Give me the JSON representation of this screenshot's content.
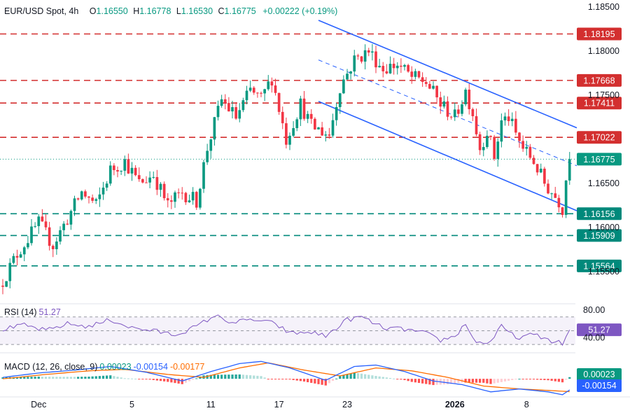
{
  "header": {
    "symbol": "EUR/USD Spot, 4h",
    "o_label": "O",
    "o_value": "1.16550",
    "h_label": "H",
    "h_value": "1.16778",
    "l_label": "L",
    "l_value": "1.16530",
    "c_label": "C",
    "c_value": "1.16775",
    "change": "+0.00222 (+0.19%)"
  },
  "colors": {
    "up": "#089981",
    "down": "#f23645",
    "channel": "#2962ff",
    "resistance": "#d32f2f",
    "support": "#00897b",
    "rsi": "#7e57c2",
    "macd": "#2962ff",
    "signal": "#ff6d00"
  },
  "chart_data": {
    "type": "candlestick",
    "price_axis_ticks": [
      "1.18500",
      "1.18000",
      "1.17500",
      "1.16500",
      "1.16000",
      "1.15500"
    ],
    "price_range": [
      1.1515,
      1.1858
    ],
    "x_ticks": [
      {
        "label": "Dec",
        "bar": 10
      },
      {
        "label": "5",
        "bar": 36
      },
      {
        "label": "11",
        "bar": 58
      },
      {
        "label": "17",
        "bar": 77
      },
      {
        "label": "23",
        "bar": 96
      },
      {
        "label": "2026",
        "bar": 126
      },
      {
        "label": "8",
        "bar": 146
      }
    ],
    "bar_count": 160,
    "resistance_levels": [
      {
        "label": "1.18195",
        "value": 1.18195
      },
      {
        "label": "1.17668",
        "value": 1.17668
      },
      {
        "label": "1.17411",
        "value": 1.17411
      },
      {
        "label": "1.17022",
        "value": 1.17022
      }
    ],
    "support_levels": [
      {
        "label": "1.16156",
        "value": 1.16156
      },
      {
        "label": "1.15909",
        "value": 1.15909
      },
      {
        "label": "1.15564",
        "value": 1.15564
      }
    ],
    "current_price": {
      "label": "1.16775",
      "value": 1.16775
    },
    "channel": {
      "upper": [
        {
          "bar": 88,
          "price": 1.1835
        },
        {
          "bar": 160,
          "price": 1.1713
        }
      ],
      "middle": [
        {
          "bar": 88,
          "price": 1.179
        },
        {
          "bar": 160,
          "price": 1.167
        }
      ],
      "lower": [
        {
          "bar": 88,
          "price": 1.1743
        },
        {
          "bar": 160,
          "price": 1.1619
        }
      ]
    },
    "close_anchors": [
      {
        "bar": 0,
        "price": 1.154
      },
      {
        "bar": 4,
        "price": 1.157
      },
      {
        "bar": 10,
        "price": 1.1605
      },
      {
        "bar": 14,
        "price": 1.158
      },
      {
        "bar": 18,
        "price": 1.161
      },
      {
        "bar": 22,
        "price": 1.164
      },
      {
        "bar": 26,
        "price": 1.1625
      },
      {
        "bar": 30,
        "price": 1.1665
      },
      {
        "bar": 34,
        "price": 1.1675
      },
      {
        "bar": 38,
        "price": 1.165
      },
      {
        "bar": 42,
        "price": 1.166
      },
      {
        "bar": 46,
        "price": 1.1625
      },
      {
        "bar": 50,
        "price": 1.164
      },
      {
        "bar": 54,
        "price": 1.163
      },
      {
        "bar": 57,
        "price": 1.169
      },
      {
        "bar": 61,
        "price": 1.1745
      },
      {
        "bar": 65,
        "price": 1.1725
      },
      {
        "bar": 69,
        "price": 1.1755
      },
      {
        "bar": 72,
        "price": 1.1745
      },
      {
        "bar": 75,
        "price": 1.177
      },
      {
        "bar": 79,
        "price": 1.17
      },
      {
        "bar": 83,
        "price": 1.174
      },
      {
        "bar": 86,
        "price": 1.1715
      },
      {
        "bar": 91,
        "price": 1.1705
      },
      {
        "bar": 94,
        "price": 1.176
      },
      {
        "bar": 98,
        "price": 1.179
      },
      {
        "bar": 102,
        "price": 1.18
      },
      {
        "bar": 106,
        "price": 1.178
      },
      {
        "bar": 110,
        "price": 1.1785
      },
      {
        "bar": 114,
        "price": 1.177
      },
      {
        "bar": 118,
        "price": 1.1765
      },
      {
        "bar": 122,
        "price": 1.174
      },
      {
        "bar": 126,
        "price": 1.1725
      },
      {
        "bar": 129,
        "price": 1.1755
      },
      {
        "bar": 131,
        "price": 1.173
      },
      {
        "bar": 133,
        "price": 1.169
      },
      {
        "bar": 135,
        "price": 1.171
      },
      {
        "bar": 137,
        "price": 1.168
      },
      {
        "bar": 139,
        "price": 1.172
      },
      {
        "bar": 141,
        "price": 1.1725
      },
      {
        "bar": 143,
        "price": 1.1705
      },
      {
        "bar": 145,
        "price": 1.169
      },
      {
        "bar": 148,
        "price": 1.1675
      },
      {
        "bar": 151,
        "price": 1.165
      },
      {
        "bar": 153,
        "price": 1.164
      },
      {
        "bar": 155,
        "price": 1.163
      },
      {
        "bar": 156,
        "price": 1.1622
      },
      {
        "bar": 157,
        "price": 1.1655
      },
      {
        "bar": 158,
        "price": 1.16775
      }
    ]
  },
  "rsi": {
    "label": "RSI (14)",
    "value": "51.27",
    "ticks": [
      "80.00",
      "40.00"
    ],
    "upper": 70,
    "middle": 50,
    "lower": 30,
    "range": [
      22,
      86
    ],
    "anchors": [
      {
        "bar": 0,
        "v": 52
      },
      {
        "bar": 6,
        "v": 58
      },
      {
        "bar": 12,
        "v": 50
      },
      {
        "bar": 18,
        "v": 60
      },
      {
        "bar": 24,
        "v": 56
      },
      {
        "bar": 30,
        "v": 66
      },
      {
        "bar": 36,
        "v": 54
      },
      {
        "bar": 42,
        "v": 50
      },
      {
        "bar": 48,
        "v": 44
      },
      {
        "bar": 54,
        "v": 56
      },
      {
        "bar": 59,
        "v": 72
      },
      {
        "bar": 64,
        "v": 62
      },
      {
        "bar": 70,
        "v": 66
      },
      {
        "bar": 76,
        "v": 60
      },
      {
        "bar": 80,
        "v": 46
      },
      {
        "bar": 86,
        "v": 48
      },
      {
        "bar": 90,
        "v": 42
      },
      {
        "bar": 96,
        "v": 66
      },
      {
        "bar": 100,
        "v": 70
      },
      {
        "bar": 106,
        "v": 54
      },
      {
        "bar": 112,
        "v": 52
      },
      {
        "bar": 118,
        "v": 46
      },
      {
        "bar": 122,
        "v": 36
      },
      {
        "bar": 126,
        "v": 42
      },
      {
        "bar": 129,
        "v": 60
      },
      {
        "bar": 132,
        "v": 32
      },
      {
        "bar": 136,
        "v": 34
      },
      {
        "bar": 139,
        "v": 56
      },
      {
        "bar": 143,
        "v": 40
      },
      {
        "bar": 148,
        "v": 44
      },
      {
        "bar": 154,
        "v": 34
      },
      {
        "bar": 156,
        "v": 31
      },
      {
        "bar": 158,
        "v": 51.27
      }
    ]
  },
  "macd": {
    "label": "MACD (12, 26, close, 9)",
    "value1": "0.00023",
    "value2": "-0.00154",
    "value3": "-0.00177",
    "range": [
      -0.0024,
      0.0032
    ],
    "macd_anchors": [
      {
        "bar": 0,
        "v": 0.0002
      },
      {
        "bar": 10,
        "v": 0.0008
      },
      {
        "bar": 20,
        "v": 0.0012
      },
      {
        "bar": 30,
        "v": 0.0017
      },
      {
        "bar": 40,
        "v": 0.0009
      },
      {
        "bar": 50,
        "v": -0.0003
      },
      {
        "bar": 58,
        "v": 0.001
      },
      {
        "bar": 66,
        "v": 0.0021
      },
      {
        "bar": 72,
        "v": 0.0024
      },
      {
        "bar": 80,
        "v": 0.0015
      },
      {
        "bar": 90,
        "v": -0.0002
      },
      {
        "bar": 98,
        "v": 0.0017
      },
      {
        "bar": 104,
        "v": 0.0019
      },
      {
        "bar": 112,
        "v": 0.001
      },
      {
        "bar": 120,
        "v": -0.0003
      },
      {
        "bar": 128,
        "v": -0.0008
      },
      {
        "bar": 136,
        "v": -0.0018
      },
      {
        "bar": 144,
        "v": -0.0014
      },
      {
        "bar": 152,
        "v": -0.0018
      },
      {
        "bar": 156,
        "v": -0.0022
      },
      {
        "bar": 158,
        "v": -0.00154
      }
    ],
    "signal_anchors": [
      {
        "bar": 0,
        "v": 0.0
      },
      {
        "bar": 12,
        "v": 0.0006
      },
      {
        "bar": 24,
        "v": 0.0011
      },
      {
        "bar": 34,
        "v": 0.0013
      },
      {
        "bar": 46,
        "v": 0.0006
      },
      {
        "bar": 56,
        "v": 0.0002
      },
      {
        "bar": 66,
        "v": 0.0015
      },
      {
        "bar": 74,
        "v": 0.0022
      },
      {
        "bar": 84,
        "v": 0.0012
      },
      {
        "bar": 94,
        "v": 0.0004
      },
      {
        "bar": 104,
        "v": 0.0015
      },
      {
        "bar": 114,
        "v": 0.0011
      },
      {
        "bar": 124,
        "v": 0.0002
      },
      {
        "bar": 134,
        "v": -0.001
      },
      {
        "bar": 144,
        "v": -0.0014
      },
      {
        "bar": 152,
        "v": -0.0016
      },
      {
        "bar": 158,
        "v": -0.00177
      }
    ]
  }
}
